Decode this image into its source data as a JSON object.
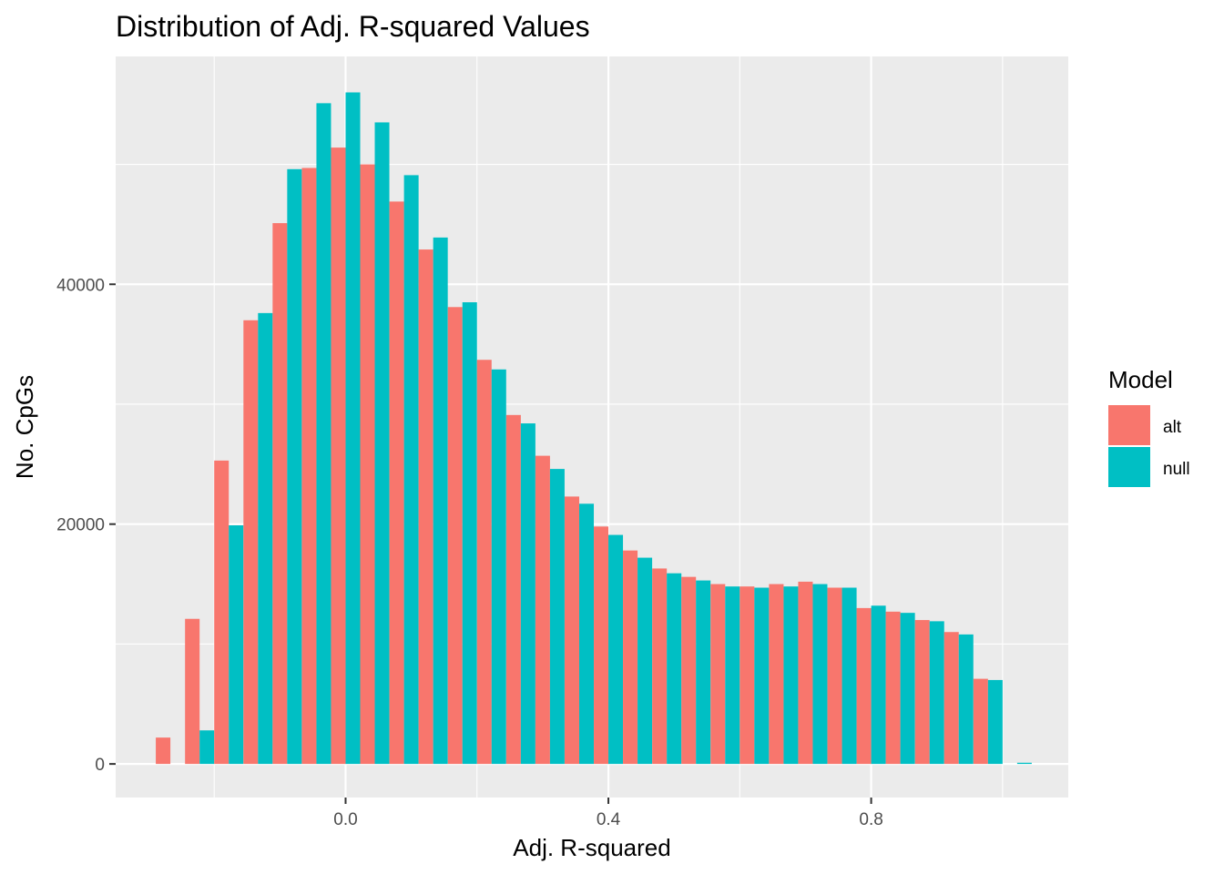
{
  "chart_data": {
    "type": "bar",
    "title": "Distribution of Adj. R-squared Values",
    "xlabel": "Adj. R-squared",
    "ylabel": "No. CpGs",
    "xlim": [
      -0.35,
      1.1
    ],
    "ylim": [
      -2800,
      59000
    ],
    "x_ticks": [
      0.0,
      0.4,
      0.8
    ],
    "x_tick_labels": [
      "0.0",
      "0.4",
      "0.8"
    ],
    "y_ticks": [
      0,
      20000,
      40000
    ],
    "y_tick_labels": [
      "0",
      "20000",
      "40000"
    ],
    "bin_width": 0.0444,
    "x": [
      -0.2667,
      -0.2222,
      -0.1778,
      -0.1333,
      -0.0889,
      -0.0444,
      0.0,
      0.0444,
      0.0889,
      0.1333,
      0.1778,
      0.2222,
      0.2667,
      0.3111,
      0.3556,
      0.4,
      0.4444,
      0.4889,
      0.5333,
      0.5778,
      0.6222,
      0.6667,
      0.7111,
      0.7556,
      0.8,
      0.8444,
      0.8889,
      0.9333,
      0.9778,
      1.0222
    ],
    "series": [
      {
        "name": "alt",
        "color": "#F8766D",
        "values": [
          2200,
          12100,
          25300,
          37000,
          45100,
          49700,
          51400,
          50000,
          46900,
          42900,
          38100,
          33700,
          29100,
          25700,
          22300,
          19800,
          17800,
          16300,
          15600,
          15000,
          14800,
          15000,
          15200,
          14700,
          13000,
          12700,
          12000,
          11000,
          7100,
          0
        ]
      },
      {
        "name": "null",
        "color": "#00BFC4",
        "values": [
          0,
          2800,
          19900,
          37600,
          49600,
          55100,
          56000,
          53500,
          49100,
          43900,
          38500,
          32900,
          28400,
          24600,
          21700,
          19100,
          17200,
          15900,
          15300,
          14800,
          14700,
          14800,
          15000,
          14700,
          13200,
          12600,
          11900,
          10800,
          7000,
          100
        ]
      }
    ],
    "legend": {
      "title": "Model",
      "position": "right",
      "labels": [
        "alt",
        "null"
      ]
    },
    "grid": true,
    "panel_background": "#EBEBEB",
    "grid_color": "#FFFFFF"
  }
}
